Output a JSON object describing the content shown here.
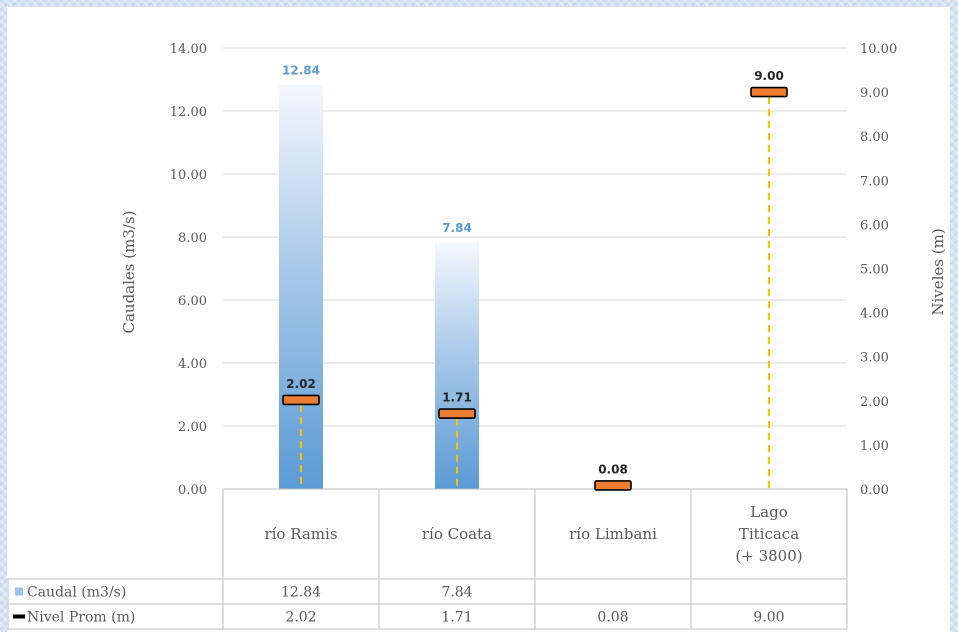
{
  "chart_data": {
    "type": "bar",
    "categories": [
      "río Ramis",
      "río Coata",
      "río Limbani",
      "Lago Titicaca (+ 3800)"
    ],
    "category_lines": [
      [
        "río Ramis"
      ],
      [
        "río Coata"
      ],
      [
        "río Limbani"
      ],
      [
        "Lago",
        "Titicaca",
        "(+ 3800)"
      ]
    ],
    "series": [
      {
        "name": "Caudal (m3/s)",
        "type": "bar",
        "axis": "left",
        "values": [
          12.84,
          7.84,
          null,
          null
        ],
        "labels": [
          "12.84",
          "7.84",
          "",
          ""
        ],
        "color": "#5b9bd5"
      },
      {
        "name": "Nivel Prom (m)",
        "type": "marker",
        "axis": "right",
        "values": [
          2.02,
          1.71,
          0.08,
          9.0
        ],
        "labels": [
          "2.02",
          "1.71",
          "0.08",
          "9.00"
        ],
        "color": "#ed7d31",
        "dropline_color": "#ffc000"
      }
    ],
    "ylabel": "Caudales  (m3/s)",
    "y2label": "Niveles  (m)",
    "ylim": [
      0,
      14
    ],
    "y2lim": [
      0,
      10
    ],
    "yticks": [
      "0.00",
      "2.00",
      "4.00",
      "6.00",
      "8.00",
      "10.00",
      "12.00",
      "14.00"
    ],
    "y2ticks": [
      "0.00",
      "1.00",
      "2.00",
      "3.00",
      "4.00",
      "5.00",
      "6.00",
      "7.00",
      "8.00",
      "9.00",
      "10.00"
    ],
    "table": {
      "rows": [
        {
          "legend": "Caudal (m3/s)",
          "cells": [
            "12.84",
            "7.84",
            "",
            ""
          ]
        },
        {
          "legend": "Nivel Prom (m)",
          "cells": [
            "2.02",
            "1.71",
            "0.08",
            "9.00"
          ]
        }
      ]
    },
    "grid": true
  }
}
